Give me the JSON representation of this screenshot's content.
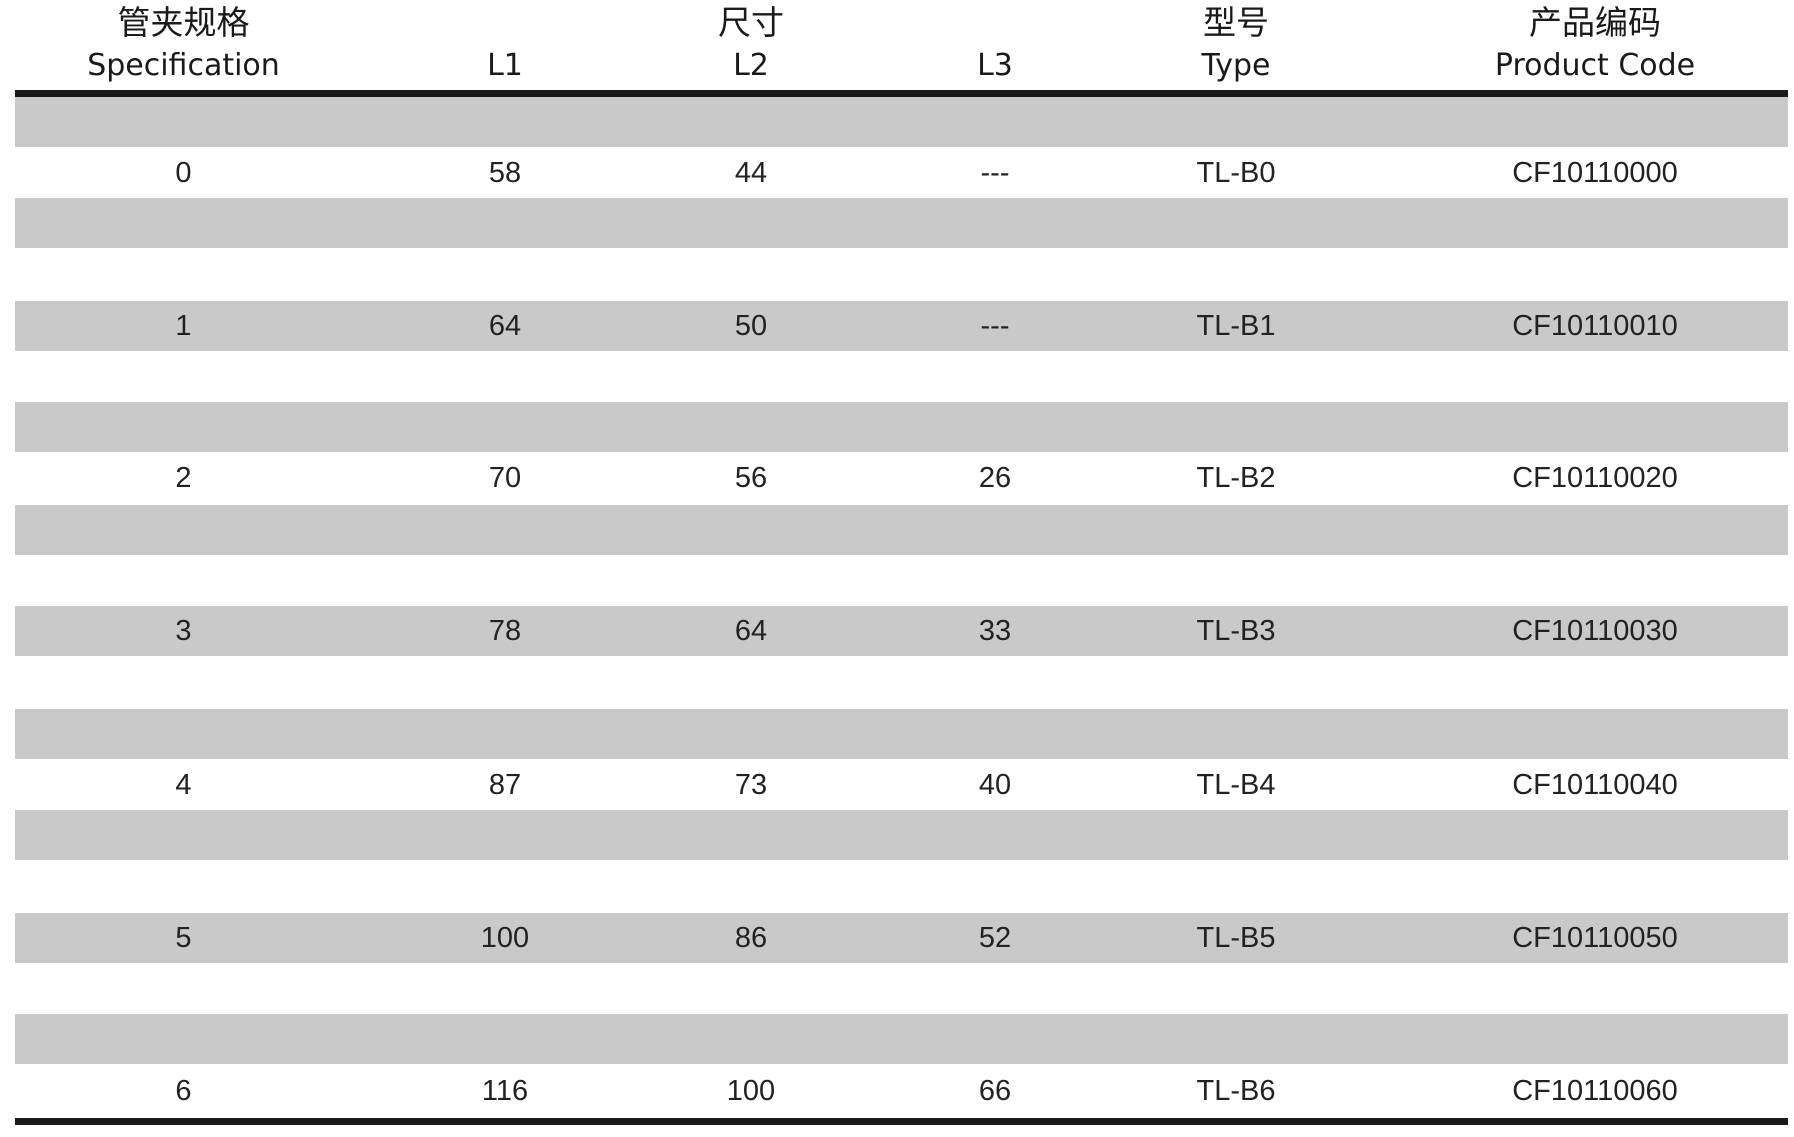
{
  "header": {
    "spec_cn": "管夹规格",
    "spec_en": "Specification",
    "dims_cn": "尺寸",
    "l1": "L1",
    "l2": "L2",
    "l3": "L3",
    "type_cn": "型号",
    "type_en": "Type",
    "code_cn": "产品编码",
    "code_en": "Product Code"
  },
  "rows": [
    {
      "spec": "0",
      "l1": "58",
      "l2": "44",
      "l3": "---",
      "type": "TL-B0",
      "code": "CF10110000"
    },
    {
      "spec": "1",
      "l1": "64",
      "l2": "50",
      "l3": "---",
      "type": "TL-B1",
      "code": "CF10110010"
    },
    {
      "spec": "2",
      "l1": "70",
      "l2": "56",
      "l3": "26",
      "type": "TL-B2",
      "code": "CF10110020"
    },
    {
      "spec": "3",
      "l1": "78",
      "l2": "64",
      "l3": "33",
      "type": "TL-B3",
      "code": "CF10110030"
    },
    {
      "spec": "4",
      "l1": "87",
      "l2": "73",
      "l3": "40",
      "type": "TL-B4",
      "code": "CF10110040"
    },
    {
      "spec": "5",
      "l1": "100",
      "l2": "86",
      "l3": "52",
      "type": "TL-B5",
      "code": "CF10110050"
    },
    {
      "spec": "6",
      "l1": "116",
      "l2": "100",
      "l3": "66",
      "type": "TL-B6",
      "code": "CF10110060"
    }
  ],
  "colors": {
    "band": "#c8c9c8",
    "rule": "#1a1a1a",
    "text": "#222222"
  }
}
